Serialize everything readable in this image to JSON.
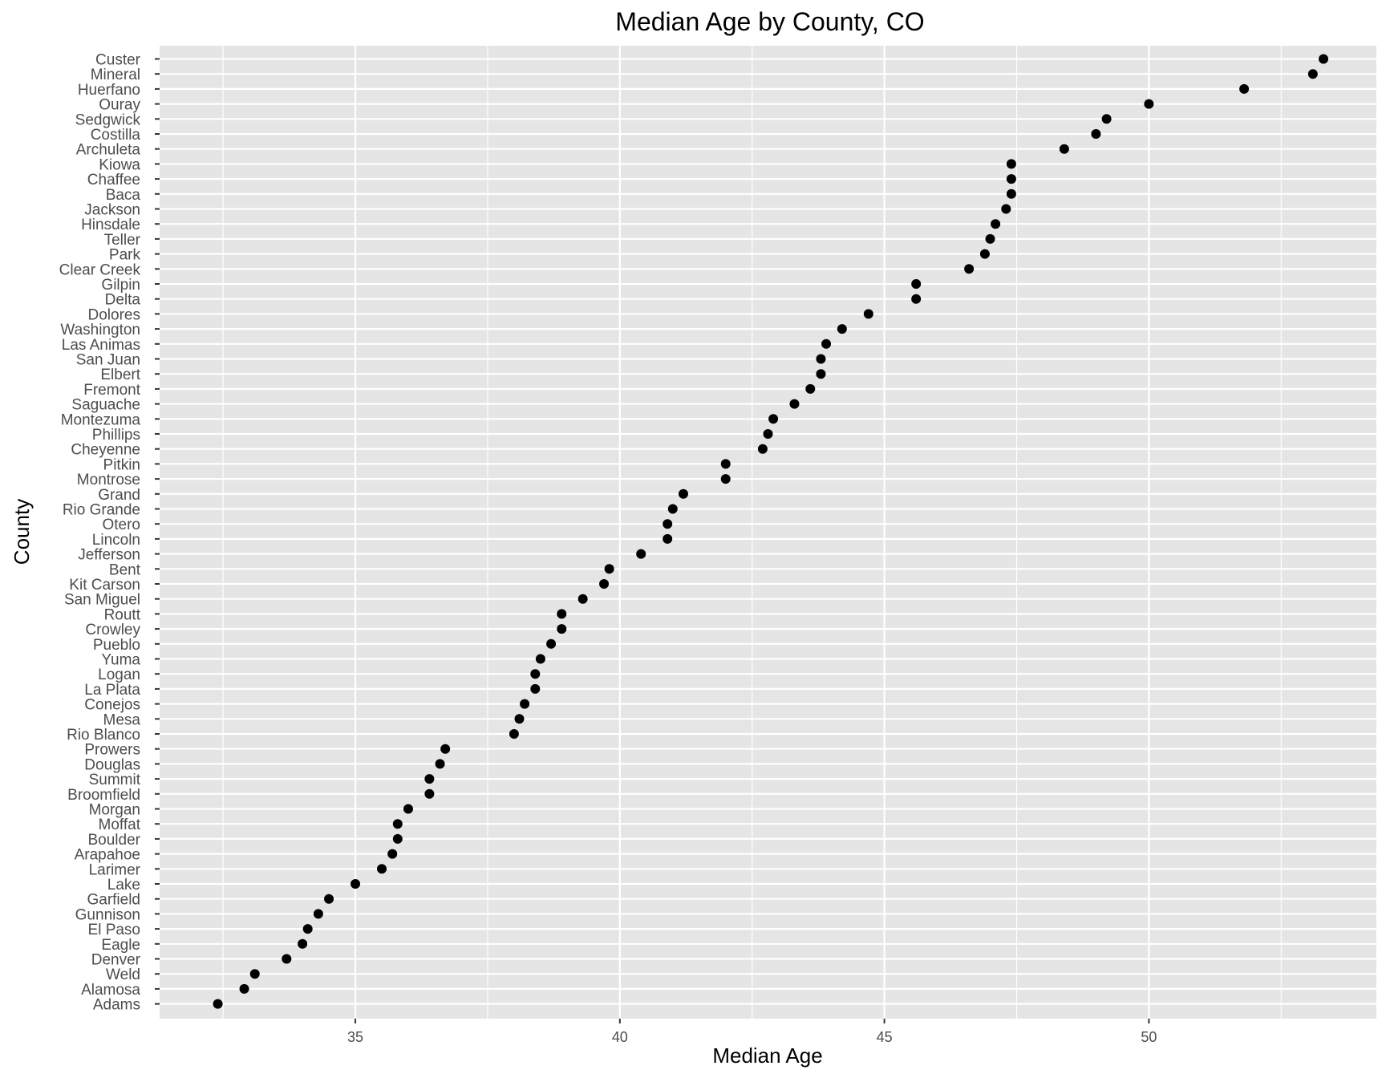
{
  "chart_data": {
    "type": "scatter",
    "title": "Median Age by County, CO",
    "xlabel": "Median Age",
    "ylabel": "County",
    "xlim": [
      31.3,
      54.3
    ],
    "x_ticks": [
      35,
      40,
      45,
      50
    ],
    "x_tick_labels": [
      "35",
      "40",
      "45",
      "50"
    ],
    "grid": true,
    "colors": {
      "panel": "#e5e5e5",
      "grid": "#ffffff",
      "point": "#000000",
      "tick": "#333333"
    },
    "points": [
      {
        "county": "Custer",
        "age": 53.3
      },
      {
        "county": "Mineral",
        "age": 53.1
      },
      {
        "county": "Huerfano",
        "age": 51.8
      },
      {
        "county": "Ouray",
        "age": 50.0
      },
      {
        "county": "Sedgwick",
        "age": 49.2
      },
      {
        "county": "Costilla",
        "age": 49.0
      },
      {
        "county": "Archuleta",
        "age": 48.4
      },
      {
        "county": "Kiowa",
        "age": 47.4
      },
      {
        "county": "Chaffee",
        "age": 47.4
      },
      {
        "county": "Baca",
        "age": 47.4
      },
      {
        "county": "Jackson",
        "age": 47.3
      },
      {
        "county": "Hinsdale",
        "age": 47.1
      },
      {
        "county": "Teller",
        "age": 47.0
      },
      {
        "county": "Park",
        "age": 46.9
      },
      {
        "county": "Clear Creek",
        "age": 46.6
      },
      {
        "county": "Gilpin",
        "age": 45.6
      },
      {
        "county": "Delta",
        "age": 45.6
      },
      {
        "county": "Dolores",
        "age": 44.7
      },
      {
        "county": "Washington",
        "age": 44.2
      },
      {
        "county": "Las Animas",
        "age": 43.9
      },
      {
        "county": "San Juan",
        "age": 43.8
      },
      {
        "county": "Elbert",
        "age": 43.8
      },
      {
        "county": "Fremont",
        "age": 43.6
      },
      {
        "county": "Saguache",
        "age": 43.3
      },
      {
        "county": "Montezuma",
        "age": 42.9
      },
      {
        "county": "Phillips",
        "age": 42.8
      },
      {
        "county": "Cheyenne",
        "age": 42.7
      },
      {
        "county": "Pitkin",
        "age": 42.0
      },
      {
        "county": "Montrose",
        "age": 42.0
      },
      {
        "county": "Grand",
        "age": 41.2
      },
      {
        "county": "Rio Grande",
        "age": 41.0
      },
      {
        "county": "Otero",
        "age": 40.9
      },
      {
        "county": "Lincoln",
        "age": 40.9
      },
      {
        "county": "Jefferson",
        "age": 40.4
      },
      {
        "county": "Bent",
        "age": 39.8
      },
      {
        "county": "Kit Carson",
        "age": 39.7
      },
      {
        "county": "San Miguel",
        "age": 39.3
      },
      {
        "county": "Routt",
        "age": 38.9
      },
      {
        "county": "Crowley",
        "age": 38.9
      },
      {
        "county": "Pueblo",
        "age": 38.7
      },
      {
        "county": "Yuma",
        "age": 38.5
      },
      {
        "county": "Logan",
        "age": 38.4
      },
      {
        "county": "La Plata",
        "age": 38.4
      },
      {
        "county": "Conejos",
        "age": 38.2
      },
      {
        "county": "Mesa",
        "age": 38.1
      },
      {
        "county": "Rio Blanco",
        "age": 38.0
      },
      {
        "county": "Prowers",
        "age": 36.7
      },
      {
        "county": "Douglas",
        "age": 36.6
      },
      {
        "county": "Summit",
        "age": 36.4
      },
      {
        "county": "Broomfield",
        "age": 36.4
      },
      {
        "county": "Morgan",
        "age": 36.0
      },
      {
        "county": "Moffat",
        "age": 35.8
      },
      {
        "county": "Boulder",
        "age": 35.8
      },
      {
        "county": "Arapahoe",
        "age": 35.7
      },
      {
        "county": "Larimer",
        "age": 35.5
      },
      {
        "county": "Lake",
        "age": 35.0
      },
      {
        "county": "Garfield",
        "age": 34.5
      },
      {
        "county": "Gunnison",
        "age": 34.3
      },
      {
        "county": "El Paso",
        "age": 34.1
      },
      {
        "county": "Eagle",
        "age": 34.0
      },
      {
        "county": "Denver",
        "age": 33.7
      },
      {
        "county": "Weld",
        "age": 33.1
      },
      {
        "county": "Alamosa",
        "age": 32.9
      },
      {
        "county": "Adams",
        "age": 32.4
      }
    ]
  }
}
